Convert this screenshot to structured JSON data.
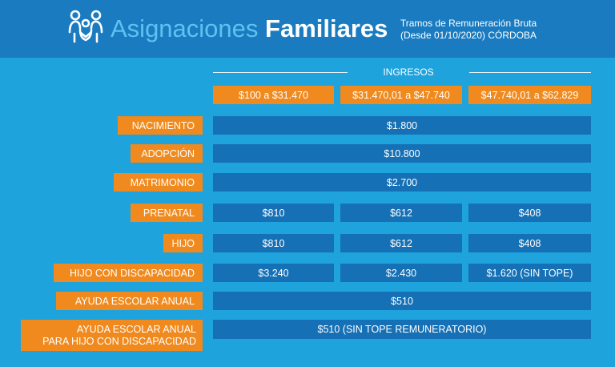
{
  "header": {
    "title_light": "Asignaciones",
    "title_bold": "Familiares",
    "subtitle_line1": "Tramos de Remuneración Bruta",
    "subtitle_line2": "(Desde 01/10/2020) CÓRDOBA",
    "logo_icon": "family-icon"
  },
  "ingresos_label": "INGRESOS",
  "brackets": [
    "$100 a $31.470",
    "$31.470,01 a $47.740",
    "$47.740,01 a $62.829"
  ],
  "rows": [
    {
      "label": "NACIMIENTO",
      "value": "$1.800"
    },
    {
      "label": "ADOPCIÓN",
      "value": "$10.800"
    },
    {
      "label": "MATRIMONIO",
      "value": "$2.700"
    },
    {
      "label": "PRENATAL",
      "values": [
        "$810",
        "$612",
        "$408"
      ]
    },
    {
      "label": "HIJO",
      "values": [
        "$810",
        "$612",
        "$408"
      ]
    },
    {
      "label": "HIJO CON DISCAPACIDAD",
      "values": [
        "$3.240",
        "$2.430",
        "$1.620 (SIN TOPE)"
      ]
    },
    {
      "label": "AYUDA ESCOLAR ANUAL",
      "value": "$510"
    },
    {
      "label_line1": "AYUDA ESCOLAR ANUAL",
      "label_line2": "PARA HIJO CON DISCAPACIDAD",
      "value": "$510 (SIN TOPE REMUNERATORIO)"
    }
  ],
  "colors": {
    "background": "#1ea3dc",
    "header": "#1a7bc0",
    "orange": "#f08a1e",
    "dark_blue": "#1570b5",
    "title_light": "#5fc2f0"
  }
}
